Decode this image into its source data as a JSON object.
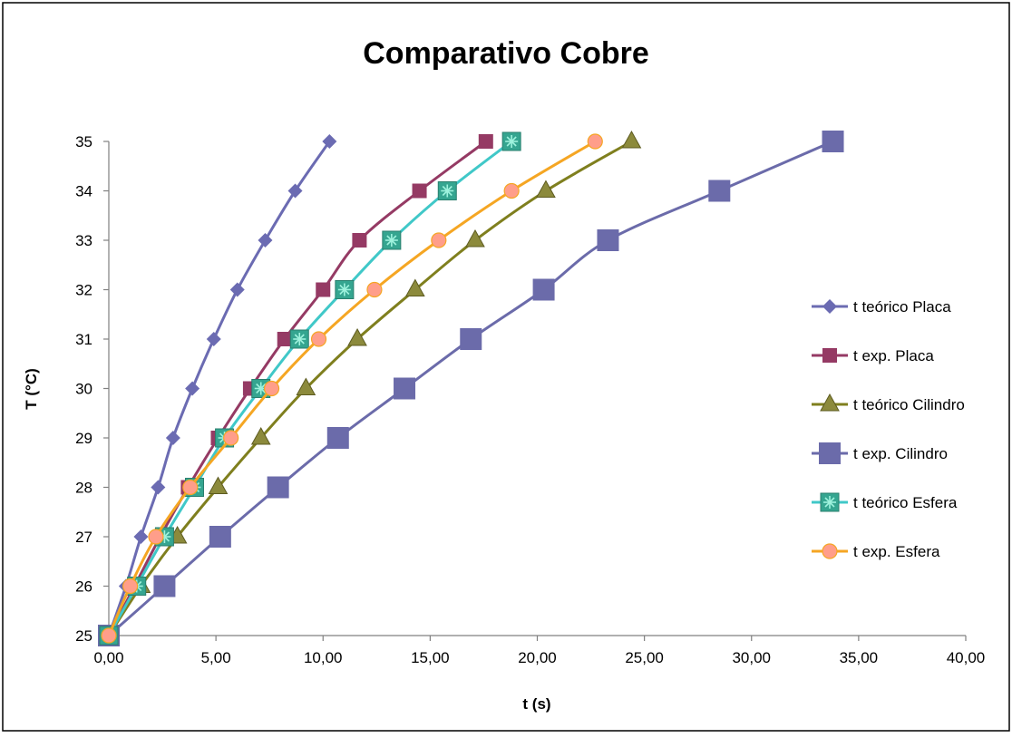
{
  "chart_data": {
    "type": "line",
    "title": "Comparativo Cobre",
    "xlabel": "t (s)",
    "ylabel": "T (°C)",
    "xlim": [
      0,
      40
    ],
    "ylim": [
      25,
      35
    ],
    "x_ticks": [
      "0,00",
      "5,00",
      "10,00",
      "15,00",
      "20,00",
      "25,00",
      "30,00",
      "35,00",
      "40,00"
    ],
    "y_ticks": [
      "25",
      "26",
      "27",
      "28",
      "29",
      "30",
      "31",
      "32",
      "33",
      "34",
      "35"
    ],
    "grid": false,
    "legend_position": "right",
    "series": [
      {
        "name": "t teórico Placa",
        "color": "#6b6bb2",
        "marker": "diamond",
        "points": [
          [
            0,
            25
          ],
          [
            0.8,
            26
          ],
          [
            1.5,
            27
          ],
          [
            2.3,
            28
          ],
          [
            3.0,
            29
          ],
          [
            3.9,
            30
          ],
          [
            4.9,
            31
          ],
          [
            6.0,
            32
          ],
          [
            7.3,
            33
          ],
          [
            8.7,
            34
          ],
          [
            10.3,
            35
          ]
        ]
      },
      {
        "name": "t exp. Placa",
        "color": "#953a64",
        "marker": "square",
        "points": [
          [
            0,
            25
          ],
          [
            1.2,
            26
          ],
          [
            2.4,
            27
          ],
          [
            3.7,
            28
          ],
          [
            5.1,
            29
          ],
          [
            6.6,
            30
          ],
          [
            8.2,
            31
          ],
          [
            10.0,
            32
          ],
          [
            11.7,
            33
          ],
          [
            14.5,
            34
          ],
          [
            17.6,
            35
          ]
        ]
      },
      {
        "name": "t teórico Cilindro",
        "color": "#7f7f1e",
        "marker": "triangle",
        "points": [
          [
            0,
            25
          ],
          [
            1.5,
            26
          ],
          [
            3.2,
            27
          ],
          [
            5.1,
            28
          ],
          [
            7.1,
            29
          ],
          [
            9.2,
            30
          ],
          [
            11.6,
            31
          ],
          [
            14.3,
            32
          ],
          [
            17.1,
            33
          ],
          [
            20.4,
            34
          ],
          [
            24.4,
            35
          ]
        ]
      },
      {
        "name": "t exp. Cilindro",
        "color": "#6b6baa",
        "marker": "square-large",
        "points": [
          [
            0,
            25
          ],
          [
            2.6,
            26
          ],
          [
            5.2,
            27
          ],
          [
            7.9,
            28
          ],
          [
            10.7,
            29
          ],
          [
            13.8,
            30
          ],
          [
            16.9,
            31
          ],
          [
            20.3,
            32
          ],
          [
            23.3,
            33
          ],
          [
            28.5,
            34
          ],
          [
            33.8,
            35
          ]
        ]
      },
      {
        "name": "t teórico Esfera",
        "color": "#40c8c8",
        "marker": "star-square",
        "points": [
          [
            0,
            25
          ],
          [
            1.3,
            26
          ],
          [
            2.6,
            27
          ],
          [
            4.0,
            28
          ],
          [
            5.4,
            29
          ],
          [
            7.1,
            30
          ],
          [
            8.9,
            31
          ],
          [
            11.0,
            32
          ],
          [
            13.2,
            33
          ],
          [
            15.8,
            34
          ],
          [
            18.8,
            35
          ]
        ]
      },
      {
        "name": "t exp. Esfera",
        "color": "#f5a623",
        "marker": "circle",
        "points": [
          [
            0,
            25
          ],
          [
            1.0,
            26
          ],
          [
            2.2,
            27
          ],
          [
            3.8,
            28
          ],
          [
            5.7,
            29
          ],
          [
            7.6,
            30
          ],
          [
            9.8,
            31
          ],
          [
            12.4,
            32
          ],
          [
            15.4,
            33
          ],
          [
            18.8,
            34
          ],
          [
            22.7,
            35
          ]
        ]
      }
    ]
  }
}
